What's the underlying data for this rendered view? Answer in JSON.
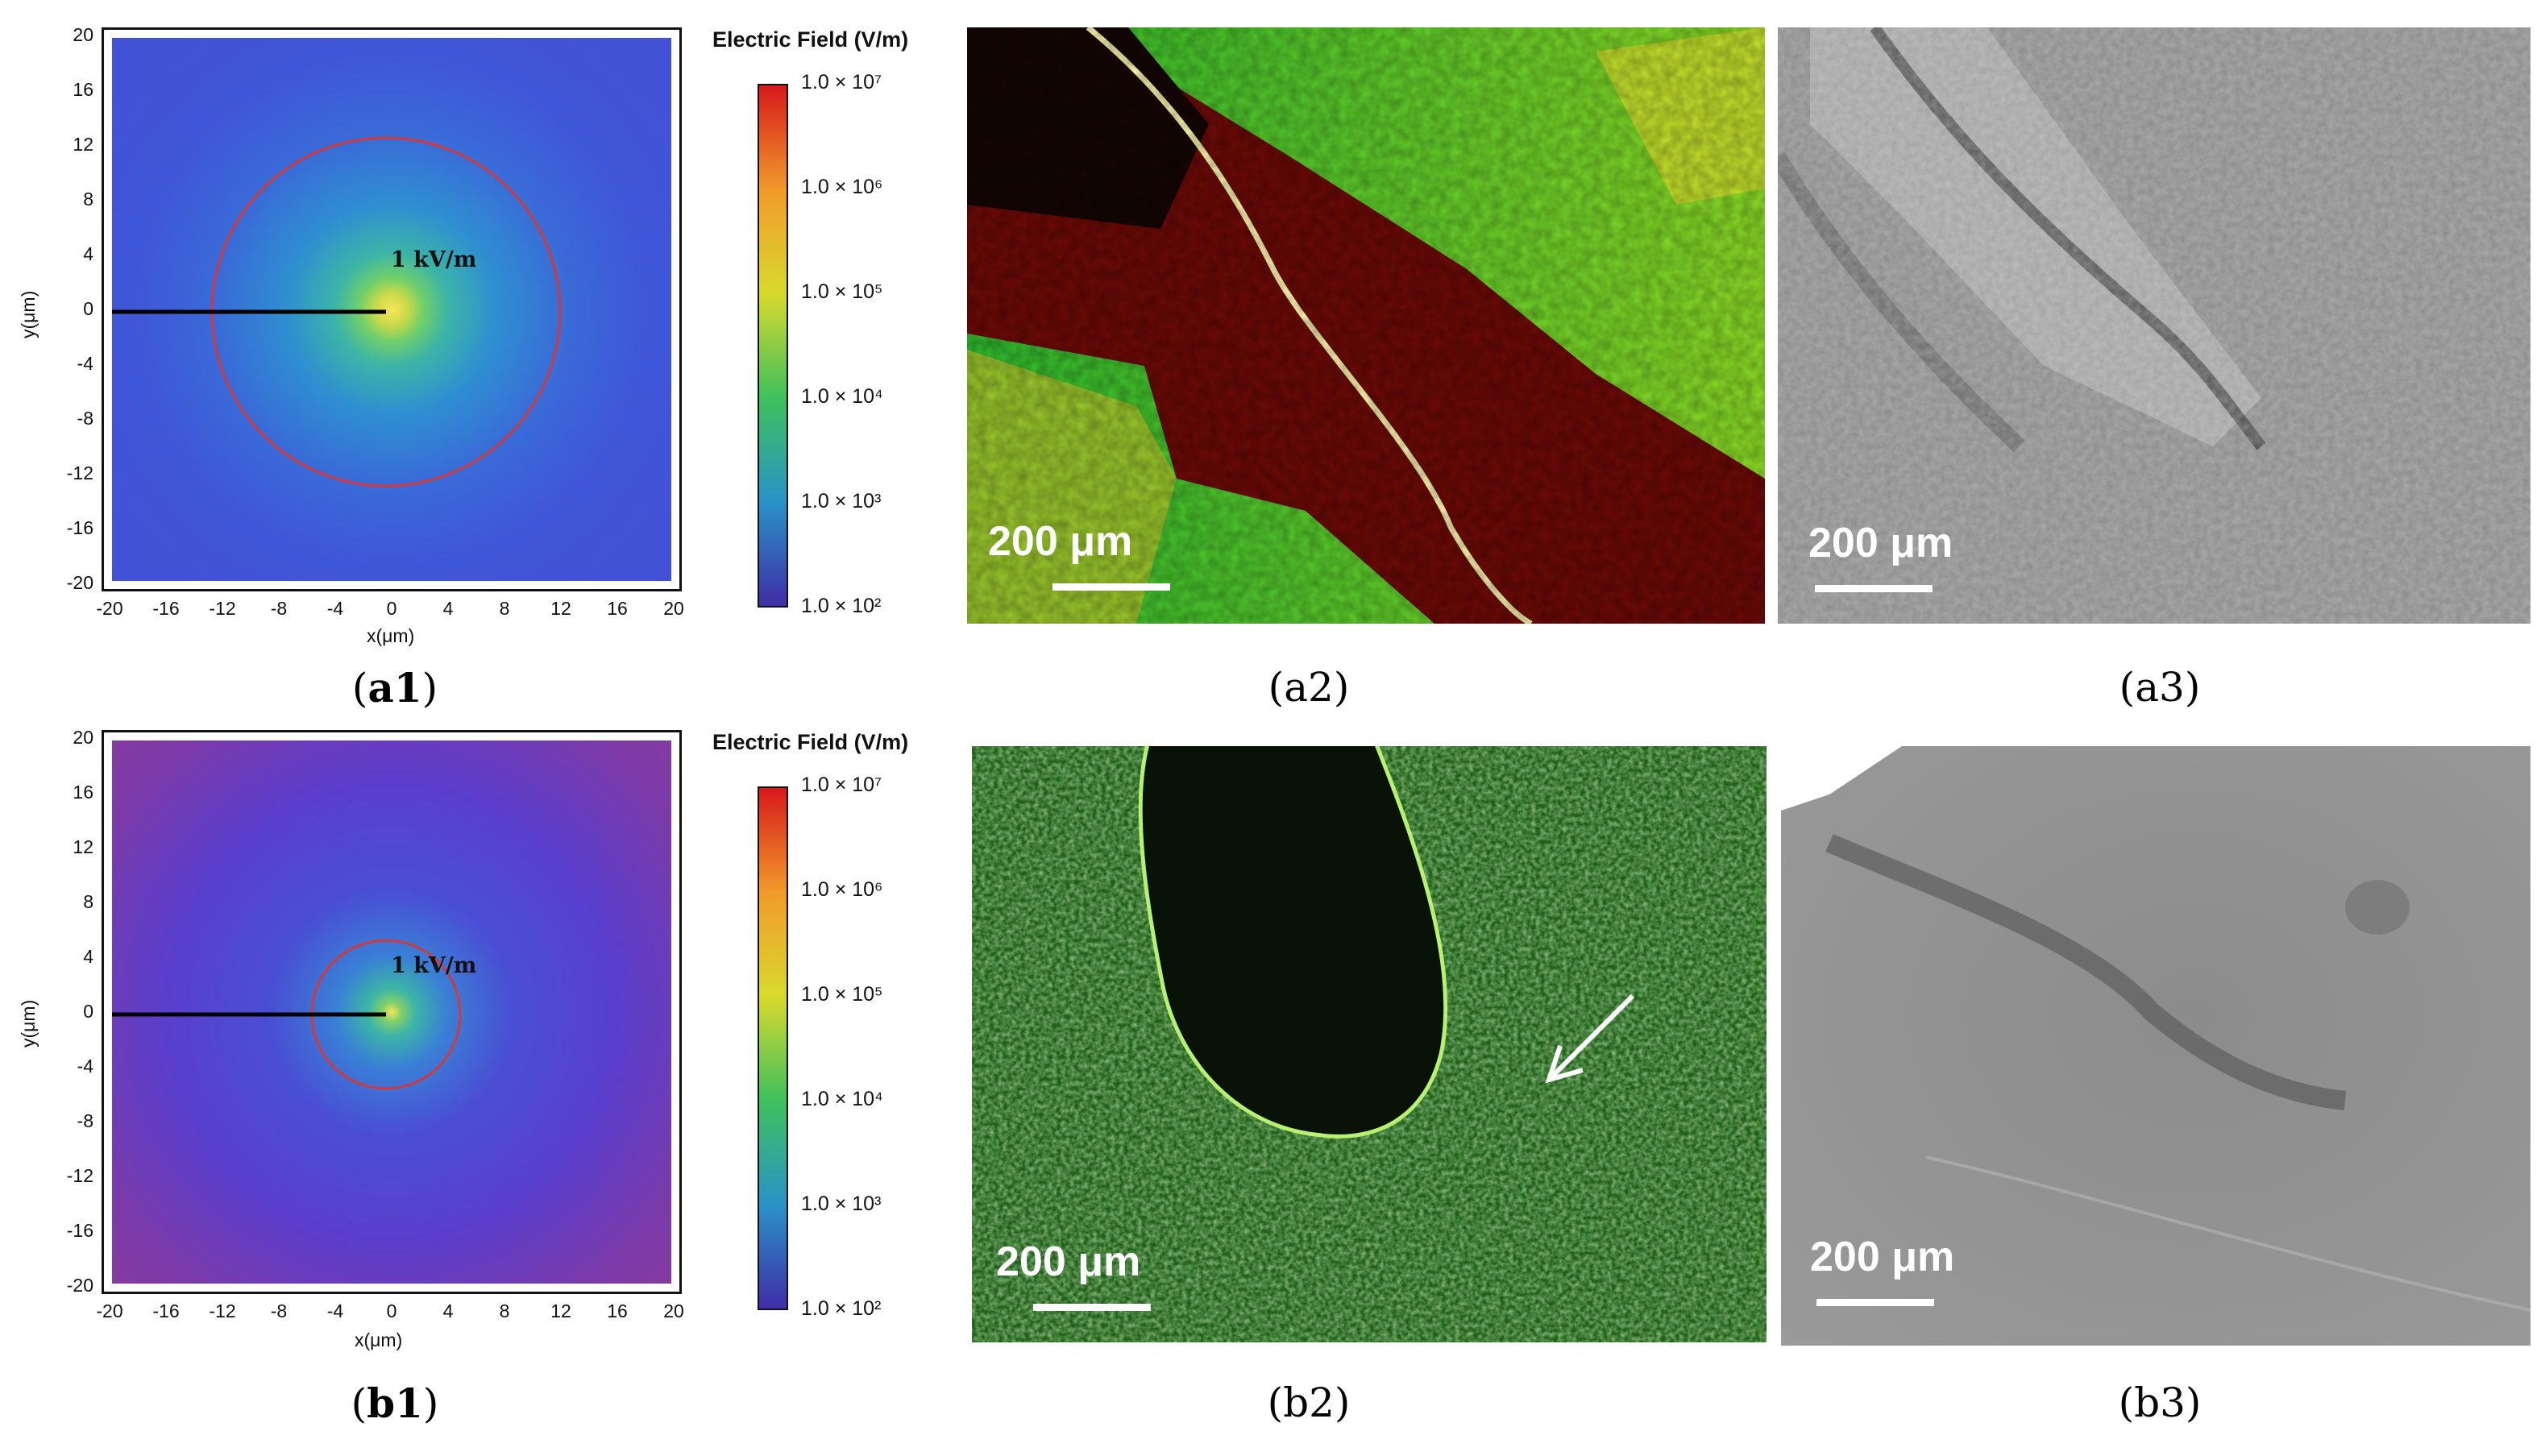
{
  "colorbar": {
    "title": "Electric Field (V/m)",
    "ticks": [
      "1.0 × 10⁷",
      "1.0 × 10⁶",
      "1.0 × 10⁵",
      "1.0 × 10⁴",
      "1.0 × 10³",
      "1.0 × 10²"
    ],
    "colors": [
      "#d7191c",
      "#f19a2a",
      "#d8d92d",
      "#3ec05c",
      "#2a93c8",
      "#3f2ea6"
    ]
  },
  "heatmap_plot": {
    "x_ticks": [
      "-20",
      "-16",
      "-12",
      "-8",
      "-4",
      "0",
      "4",
      "8",
      "12",
      "16",
      "20"
    ],
    "y_ticks": [
      "20",
      "16",
      "12",
      "8",
      "4",
      "0",
      "-4",
      "-8",
      "-12",
      "-16",
      "-20"
    ],
    "xlabel": "x(μm)",
    "ylabel": "y(μm)",
    "annotation": "1 kV/m"
  },
  "panels": {
    "a1": {
      "caption_prefix": "(",
      "caption_bold": "a1",
      "caption_suffix": ")"
    },
    "a2": {
      "caption_prefix": "(",
      "caption_bold": "a2",
      "caption_suffix": ")",
      "scalebar": "200 μm"
    },
    "a3": {
      "caption_prefix": "(",
      "caption_bold": "a3",
      "caption_suffix": ")",
      "scalebar": "200 μm"
    },
    "b1": {
      "caption_prefix": "(",
      "caption_bold": "b1",
      "caption_suffix": ")"
    },
    "b2": {
      "caption_prefix": "(",
      "caption_bold": "b2",
      "caption_suffix": ")",
      "scalebar": "200 μm"
    },
    "b3": {
      "caption_prefix": "(",
      "caption_bold": "b3",
      "caption_suffix": ")",
      "scalebar": "200 μm"
    }
  }
}
